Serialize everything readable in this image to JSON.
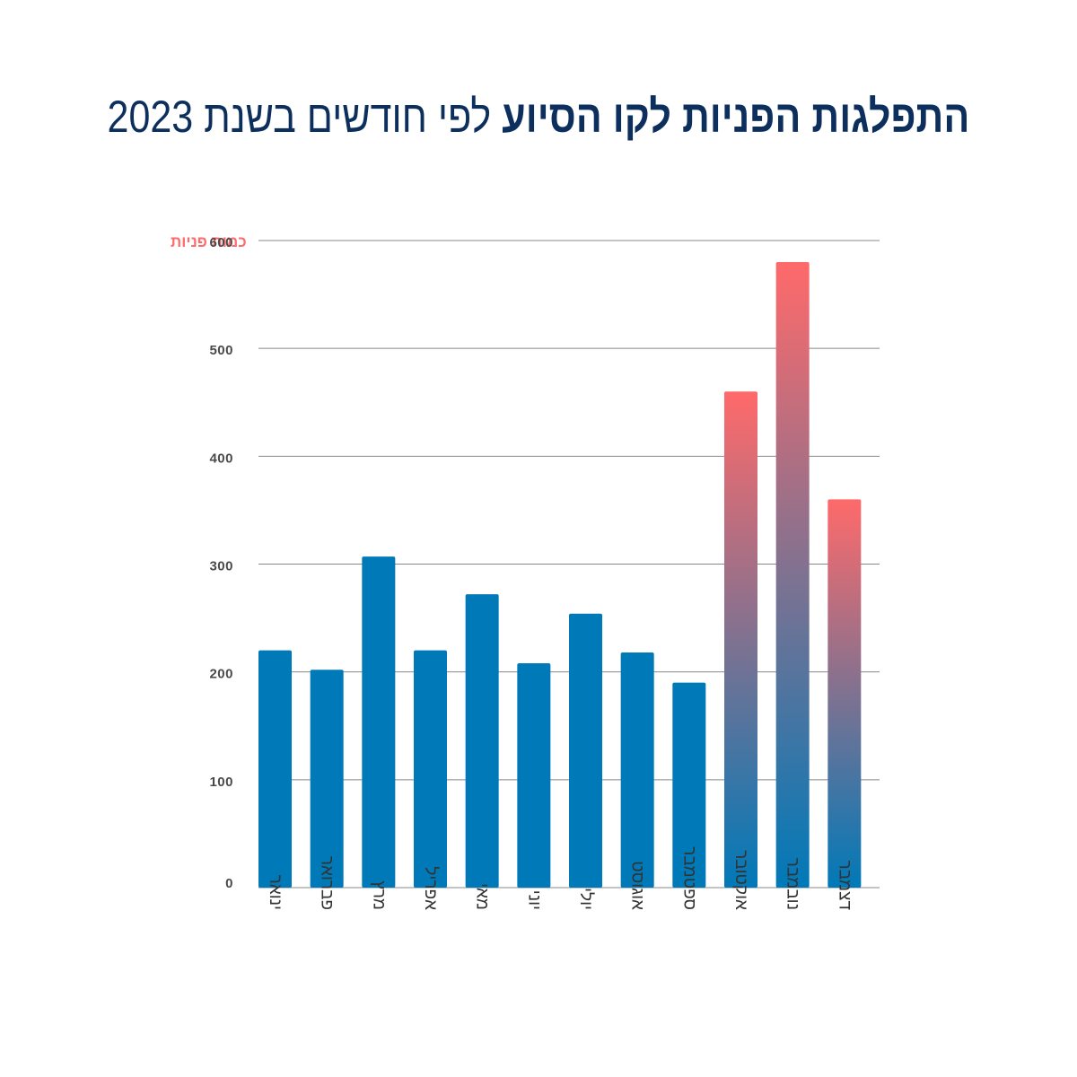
{
  "title": {
    "bold": "התפלגות הפניות לקו הסיוע",
    "light": "לפי חודשים בשנת 2023"
  },
  "colors": {
    "title": "#0d2f5e",
    "bar": "#0079b8",
    "highlight": "#ff6a6a",
    "axis_label": "#ff6a6a",
    "grid": "#888888"
  },
  "chart_data": {
    "type": "bar",
    "ylabel": "כמות פניות",
    "xlabel": "",
    "ylim": [
      0,
      600
    ],
    "yticks": [
      0,
      100,
      200,
      300,
      400,
      500,
      600
    ],
    "grid": true,
    "categories": [
      "ינואר",
      "פברואר",
      "מרץ",
      "אפריל",
      "מאי",
      "יוני",
      "יולי",
      "אוגוסט",
      "ספטמבר",
      "אוקטובר",
      "נובמבר",
      "דצמבר"
    ],
    "values": [
      220,
      202,
      307,
      220,
      272,
      208,
      254,
      218,
      190,
      460,
      580,
      360
    ],
    "highlighted_categories": [
      "אוקטובר",
      "נובמבר",
      "דצמבר"
    ]
  }
}
